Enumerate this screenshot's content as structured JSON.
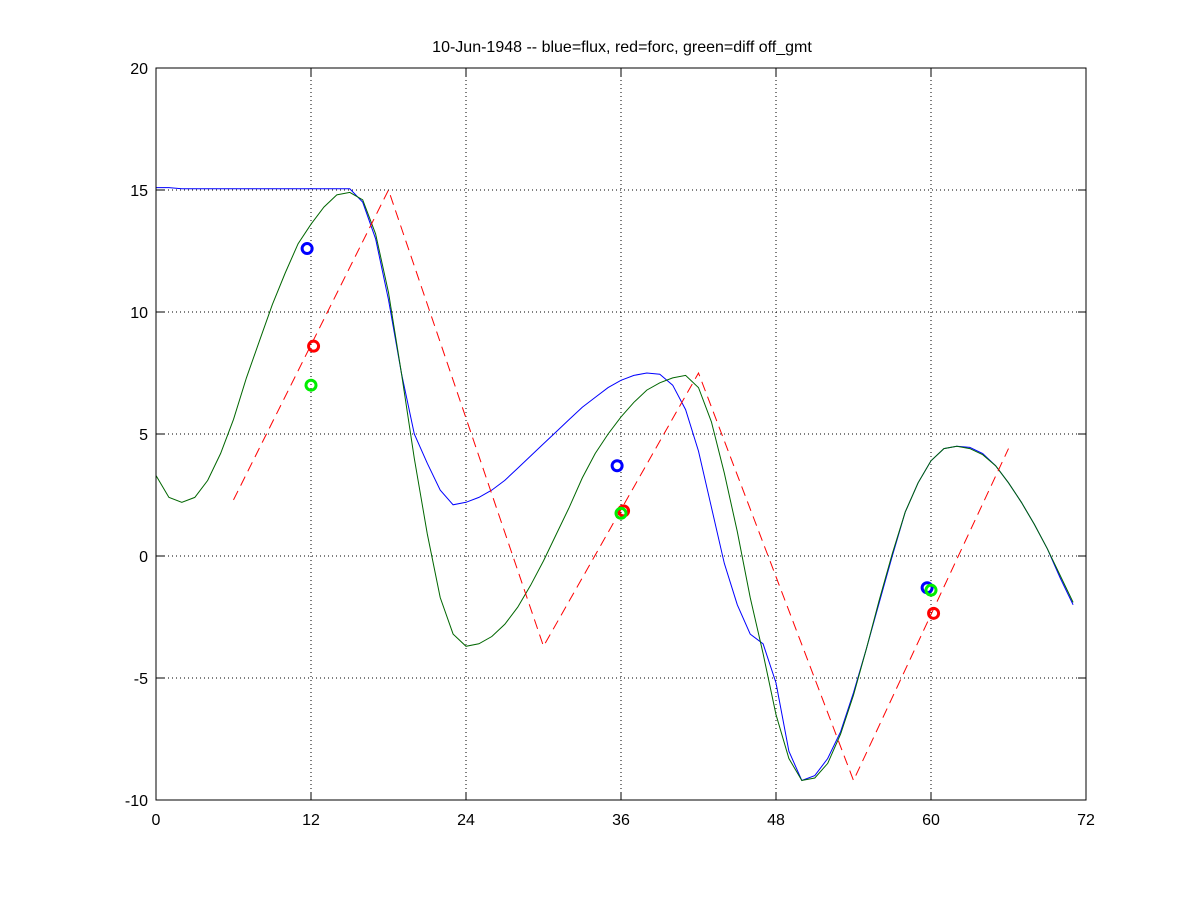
{
  "chart_data": {
    "type": "line",
    "title": "10-Jun-1948 -- blue=flux, red=forc, green=diff off_gmt",
    "xlabel": "",
    "ylabel": "",
    "xlim": [
      0,
      72
    ],
    "ylim": [
      -10,
      20
    ],
    "xticks": [
      0,
      12,
      24,
      36,
      48,
      60,
      72
    ],
    "yticks": [
      -10,
      -5,
      0,
      5,
      10,
      15,
      20
    ],
    "grid": true,
    "legend": "none",
    "series": [
      {
        "color": "#0000ff",
        "style": "solid",
        "x": [
          0,
          1,
          2,
          3,
          4,
          5,
          6,
          7,
          8,
          9,
          10,
          11,
          12,
          13,
          14,
          15,
          16,
          17,
          18,
          19,
          20,
          21,
          22,
          23,
          24,
          25,
          26,
          27,
          28,
          29,
          30,
          31,
          32,
          33,
          34,
          35,
          36,
          37,
          38,
          39,
          40,
          41,
          42,
          43,
          44,
          45,
          46,
          47,
          48,
          49,
          50,
          51,
          52,
          53,
          54,
          55,
          56,
          57,
          58,
          59,
          60,
          61,
          62,
          63,
          64,
          65,
          66,
          67,
          68,
          69,
          70,
          71
        ],
        "values": [
          15.1,
          15.1,
          15.05,
          15.05,
          15.05,
          15.05,
          15.05,
          15.05,
          15.05,
          15.05,
          15.05,
          15.05,
          15.05,
          15.05,
          15.05,
          15.05,
          14.5,
          13.0,
          10.5,
          7.5,
          5.0,
          3.8,
          2.7,
          2.1,
          2.2,
          2.4,
          2.7,
          3.1,
          3.6,
          4.1,
          4.6,
          5.1,
          5.6,
          6.1,
          6.5,
          6.9,
          7.2,
          7.4,
          7.5,
          7.45,
          7.0,
          6.0,
          4.3,
          2.0,
          -0.3,
          -2.0,
          -3.2,
          -3.6,
          -5.2,
          -8.0,
          -9.2,
          -9.0,
          -8.3,
          -7.2,
          -5.6,
          -3.8,
          -1.9,
          0.0,
          1.8,
          3.0,
          3.9,
          4.4,
          4.5,
          4.45,
          4.2,
          3.7,
          3.0,
          2.2,
          1.3,
          0.3,
          -0.9,
          -2.0
        ]
      },
      {
        "color": "#006600",
        "style": "solid",
        "x": [
          0,
          1,
          2,
          3,
          4,
          5,
          6,
          7,
          8,
          9,
          10,
          11,
          12,
          13,
          14,
          15,
          16,
          17,
          18,
          19,
          20,
          21,
          22,
          23,
          24,
          25,
          26,
          27,
          28,
          29,
          30,
          31,
          32,
          33,
          34,
          35,
          36,
          37,
          38,
          39,
          40,
          41,
          42,
          43,
          44,
          45,
          46,
          47,
          48,
          49,
          50,
          51,
          52,
          53,
          54,
          55,
          56,
          57,
          58,
          59,
          60,
          61,
          62,
          63,
          64,
          65,
          66,
          67,
          68,
          69,
          70,
          71
        ],
        "values": [
          3.3,
          2.4,
          2.2,
          2.4,
          3.1,
          4.2,
          5.6,
          7.3,
          8.8,
          10.3,
          11.6,
          12.8,
          13.6,
          14.3,
          14.8,
          14.9,
          14.6,
          13.2,
          10.8,
          7.5,
          4.0,
          0.9,
          -1.7,
          -3.2,
          -3.7,
          -3.6,
          -3.3,
          -2.8,
          -2.1,
          -1.2,
          -0.2,
          0.9,
          2.0,
          3.2,
          4.2,
          5.0,
          5.7,
          6.3,
          6.8,
          7.1,
          7.3,
          7.4,
          6.9,
          5.5,
          3.4,
          1.0,
          -1.7,
          -4.0,
          -6.5,
          -8.3,
          -9.2,
          -9.1,
          -8.5,
          -7.3,
          -5.7,
          -3.8,
          -1.8,
          0.1,
          1.8,
          3.0,
          3.9,
          4.4,
          4.5,
          4.4,
          4.15,
          3.7,
          3.0,
          2.2,
          1.3,
          0.3,
          -0.8,
          -1.9
        ]
      },
      {
        "color": "#ff0000",
        "style": "dashed",
        "x": [
          6,
          18,
          30,
          42,
          54,
          66
        ],
        "values": [
          2.3,
          15.0,
          -3.7,
          7.5,
          -9.2,
          4.4
        ]
      }
    ],
    "markers": [
      {
        "color": "#0000ff",
        "points": [
          [
            11.7,
            12.6
          ],
          [
            35.7,
            3.7
          ],
          [
            59.7,
            -1.3
          ]
        ]
      },
      {
        "color": "#ff0000",
        "points": [
          [
            12.2,
            8.6
          ],
          [
            36.2,
            1.85
          ],
          [
            60.2,
            -2.35
          ]
        ]
      },
      {
        "color": "#00ee00",
        "points": [
          [
            12.0,
            7.0
          ],
          [
            36.0,
            1.75
          ],
          [
            60.0,
            -1.4
          ]
        ]
      }
    ]
  }
}
